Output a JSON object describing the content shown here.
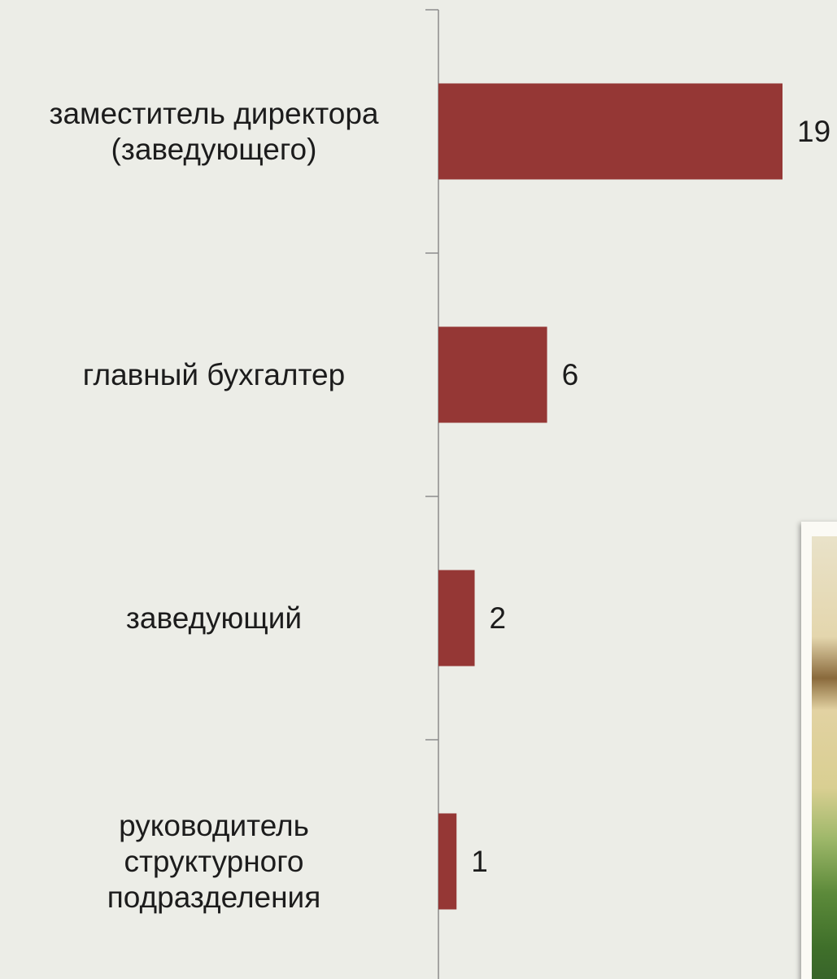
{
  "chart_data": {
    "type": "bar",
    "orientation": "horizontal",
    "categories": [
      "заместитель директора\n(заведующего)",
      "главный бухгалтер",
      "заведующий",
      "руководитель\nструктурного\nподразделения"
    ],
    "values": [
      19,
      6,
      2,
      1
    ],
    "value_labels": [
      "19",
      "6",
      "2",
      "1"
    ],
    "xlim": [
      0,
      19
    ],
    "grid": false,
    "legend": "none",
    "bar_color": "#953735",
    "axis_color": "#8c8c8c",
    "background_color": "#ecede7"
  },
  "decoration": {
    "photo_icon": "photo-fragment"
  }
}
